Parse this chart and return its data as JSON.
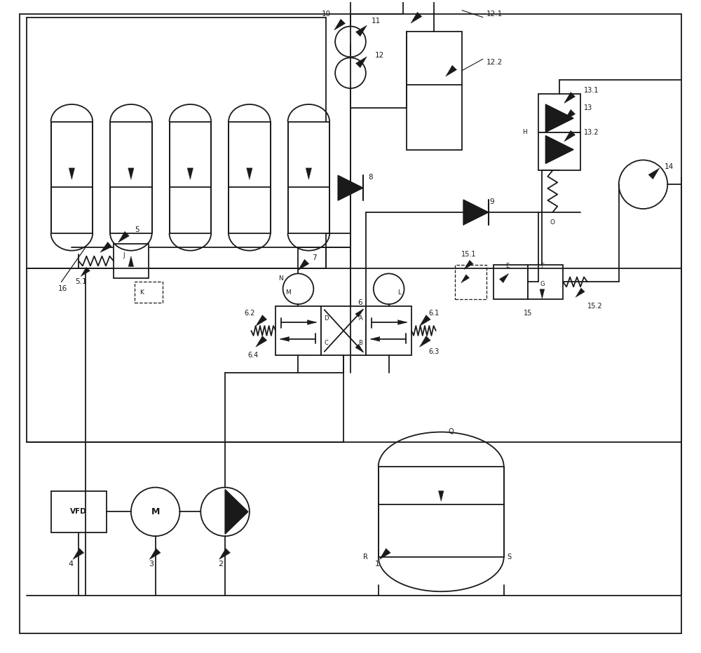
{
  "bg_color": "#ffffff",
  "line_color": "#1a1a1a",
  "lw": 1.3,
  "figsize": [
    10.0,
    9.32
  ],
  "xlim": [
    0,
    100
  ],
  "ylim": [
    0,
    93.2
  ]
}
